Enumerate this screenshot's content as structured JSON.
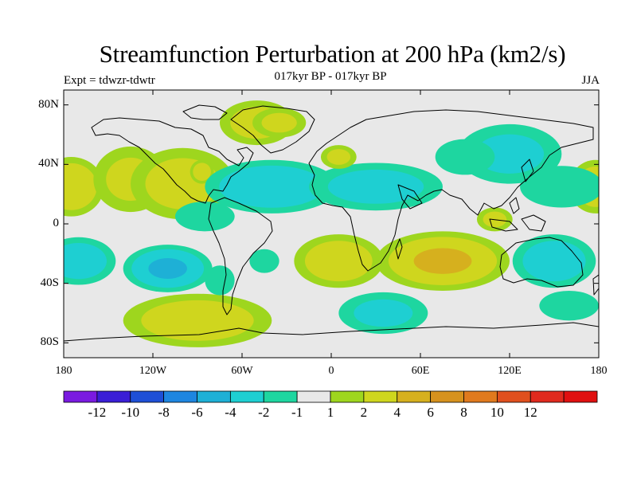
{
  "header": {
    "title": "Streamfunction Perturbation at 200 hPa (km2/s)",
    "subtitle": "017kyr BP - 017kyr BP",
    "expt": "Expt = tdwzr-tdwtr",
    "season": "JJA"
  },
  "axes": {
    "y_ticks": [
      {
        "label": "80N",
        "lat": 80
      },
      {
        "label": "40N",
        "lat": 40
      },
      {
        "label": "0",
        "lat": 0
      },
      {
        "label": "40S",
        "lat": -40
      },
      {
        "label": "80S",
        "lat": -80
      }
    ],
    "x_ticks": [
      {
        "label": "180",
        "lon": -180
      },
      {
        "label": "120W",
        "lon": -120
      },
      {
        "label": "60W",
        "lon": -60
      },
      {
        "label": "0",
        "lon": 0
      },
      {
        "label": "60E",
        "lon": 60
      },
      {
        "label": "120E",
        "lon": 120
      },
      {
        "label": "180",
        "lon": 180
      }
    ],
    "lon_range": [
      -180,
      180
    ],
    "lat_range": [
      -90,
      90
    ]
  },
  "colorbar": {
    "colors": [
      "#7a1ae0",
      "#3a1ed6",
      "#1e4fd6",
      "#1e86e0",
      "#1eb0d6",
      "#1ecfd2",
      "#1ed6a0",
      "#e8e8e8",
      "#9ed61e",
      "#cfd61e",
      "#d6b01e",
      "#d6921e",
      "#e07a1e",
      "#e0501e",
      "#e02a1e",
      "#e01010"
    ],
    "labels": [
      "-12",
      "-10",
      "-8",
      "-6",
      "-4",
      "-2",
      "-1",
      "1",
      "2",
      "4",
      "6",
      "8",
      "10",
      "12"
    ]
  },
  "field": {
    "levels": [
      -12,
      -10,
      -8,
      -6,
      -4,
      -2,
      -1,
      1,
      2,
      4,
      6,
      8,
      10,
      12
    ],
    "blobs": [
      {
        "lon": -175,
        "lat": 25,
        "r_lon": 22,
        "r_lat": 20,
        "value": 3.5
      },
      {
        "lon": 178,
        "lat": 25,
        "r_lon": 18,
        "r_lat": 18,
        "value": 3
      },
      {
        "lon": -135,
        "lat": 30,
        "r_lon": 25,
        "r_lat": 22,
        "value": 2
      },
      {
        "lon": -100,
        "lat": 27,
        "r_lon": 35,
        "r_lat": 24,
        "value": 2.5
      },
      {
        "lon": -87,
        "lat": 35,
        "r_lon": 8,
        "r_lat": 8,
        "value": 3
      },
      {
        "lon": -50,
        "lat": 68,
        "r_lon": 25,
        "r_lat": 15,
        "value": 2.5
      },
      {
        "lon": -35,
        "lat": 68,
        "r_lon": 18,
        "r_lat": 10,
        "value": 2
      },
      {
        "lon": -40,
        "lat": 25,
        "r_lon": 45,
        "r_lat": 18,
        "value": -3.5
      },
      {
        "lon": 30,
        "lat": 25,
        "r_lon": 45,
        "r_lat": 16,
        "value": -2.5
      },
      {
        "lon": 5,
        "lat": 45,
        "r_lon": 12,
        "r_lat": 8,
        "value": 2
      },
      {
        "lon": 120,
        "lat": 47,
        "r_lon": 35,
        "r_lat": 20,
        "value": -2
      },
      {
        "lon": 155,
        "lat": 25,
        "r_lon": 28,
        "r_lat": 14,
        "value": -1.5
      },
      {
        "lon": -170,
        "lat": -25,
        "r_lon": 25,
        "r_lat": 16,
        "value": -3
      },
      {
        "lon": -110,
        "lat": -30,
        "r_lon": 30,
        "r_lat": 16,
        "value": -4
      },
      {
        "lon": -90,
        "lat": -65,
        "r_lon": 50,
        "r_lat": 18,
        "value": 3
      },
      {
        "lon": -75,
        "lat": -38,
        "r_lon": 10,
        "r_lat": 10,
        "value": -1.5
      },
      {
        "lon": -45,
        "lat": -25,
        "r_lon": 10,
        "r_lat": 8,
        "value": -1.5
      },
      {
        "lon": 35,
        "lat": -60,
        "r_lon": 30,
        "r_lat": 14,
        "value": -2
      },
      {
        "lon": 5,
        "lat": -25,
        "r_lon": 30,
        "r_lat": 18,
        "value": 3
      },
      {
        "lon": 75,
        "lat": -25,
        "r_lon": 45,
        "r_lat": 20,
        "value": 4
      },
      {
        "lon": 110,
        "lat": 3,
        "r_lon": 12,
        "r_lat": 8,
        "value": 2
      },
      {
        "lon": 150,
        "lat": -25,
        "r_lon": 28,
        "r_lat": 18,
        "value": -3
      },
      {
        "lon": 160,
        "lat": -55,
        "r_lon": 20,
        "r_lat": 10,
        "value": -1.5
      },
      {
        "lon": -85,
        "lat": 5,
        "r_lon": 20,
        "r_lat": 10,
        "value": -1.5
      },
      {
        "lon": 90,
        "lat": 45,
        "r_lon": 20,
        "r_lat": 12,
        "value": -1.5
      }
    ]
  }
}
